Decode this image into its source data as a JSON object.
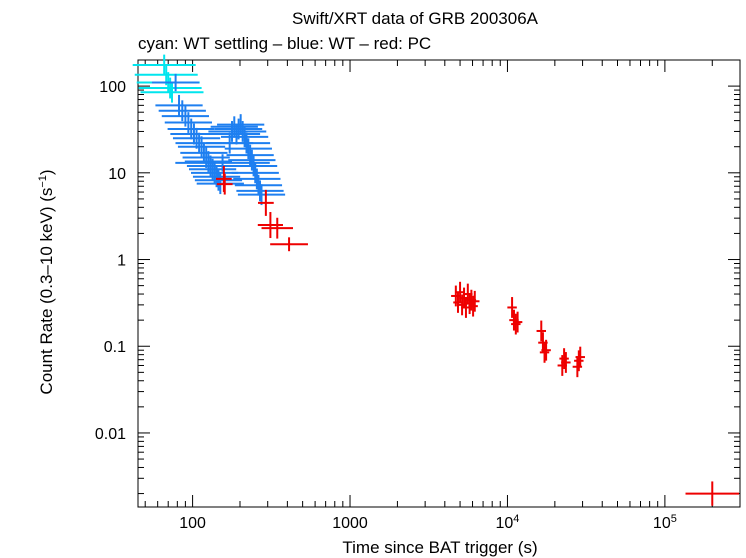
{
  "chart_data": {
    "type": "scatter",
    "title": "Swift/XRT data of GRB 200306A",
    "subtitle": "cyan: WT settling – blue: WT – red: PC",
    "xlabel": "Time since BAT trigger (s)",
    "ylabel_main": "Count Rate (0.3–10 keV) (s",
    "ylabel_sup": "−1",
    "ylabel_end": ")",
    "x_scale": "log",
    "y_scale": "log",
    "xlim": [
      45,
      300000
    ],
    "ylim": [
      0.0014,
      200
    ],
    "x_ticks": [
      {
        "value": 100,
        "label": "100",
        "sup": ""
      },
      {
        "value": 1000,
        "label": "1000",
        "sup": ""
      },
      {
        "value": 10000,
        "label": "10",
        "sup": "4"
      },
      {
        "value": 100000,
        "label": "10",
        "sup": "5"
      }
    ],
    "y_ticks": [
      {
        "value": 100,
        "label": "100"
      },
      {
        "value": 10,
        "label": "10"
      },
      {
        "value": 1,
        "label": "1"
      },
      {
        "value": 0.1,
        "label": "0.1"
      },
      {
        "value": 0.01,
        "label": "0.01"
      }
    ],
    "grid": false,
    "series": [
      {
        "name": "WT settling",
        "color": "#00e5ee",
        "points": [
          [
            66,
            175,
            0.2,
            0.12
          ],
          [
            68,
            135,
            0.2,
            0.12
          ],
          [
            70,
            110,
            0.2,
            0.12
          ],
          [
            72,
            95,
            0.2,
            0.12
          ],
          [
            74,
            85,
            0.2,
            0.12
          ]
        ]
      },
      {
        "name": "WT",
        "color": "#1e7ff0",
        "points": [
          [
            78,
            110,
            0.15,
            0.1
          ],
          [
            82,
            60,
            0.15,
            0.12
          ],
          [
            86,
            52,
            0.15,
            0.12
          ],
          [
            90,
            45,
            0.15,
            0.12
          ],
          [
            94,
            38,
            0.15,
            0.12
          ],
          [
            98,
            32,
            0.15,
            0.12
          ],
          [
            102,
            28,
            0.15,
            0.12
          ],
          [
            106,
            25,
            0.15,
            0.12
          ],
          [
            110,
            22,
            0.15,
            0.12
          ],
          [
            114,
            20,
            0.15,
            0.12
          ],
          [
            118,
            17,
            0.15,
            0.12
          ],
          [
            122,
            15,
            0.15,
            0.12
          ],
          [
            126,
            13.5,
            0.15,
            0.12
          ],
          [
            130,
            12,
            0.15,
            0.12
          ],
          [
            134,
            11,
            0.15,
            0.12
          ],
          [
            138,
            10,
            0.15,
            0.12
          ],
          [
            142,
            9,
            0.15,
            0.12
          ],
          [
            146,
            8.2,
            0.15,
            0.12
          ],
          [
            150,
            7.5,
            0.15,
            0.12
          ],
          [
            155,
            13,
            0.3,
            0.1
          ],
          [
            172,
            22,
            0.15,
            0.12
          ],
          [
            178,
            30,
            0.15,
            0.12
          ],
          [
            184,
            34,
            0.15,
            0.12
          ],
          [
            190,
            28,
            0.15,
            0.12
          ],
          [
            196,
            32,
            0.15,
            0.12
          ],
          [
            202,
            36,
            0.15,
            0.12
          ],
          [
            208,
            30,
            0.15,
            0.12
          ],
          [
            214,
            26,
            0.15,
            0.12
          ],
          [
            220,
            22,
            0.15,
            0.12
          ],
          [
            226,
            19,
            0.15,
            0.12
          ],
          [
            232,
            16,
            0.15,
            0.12
          ],
          [
            238,
            14,
            0.15,
            0.12
          ],
          [
            244,
            12,
            0.15,
            0.12
          ],
          [
            250,
            10,
            0.15,
            0.12
          ],
          [
            256,
            8.5,
            0.15,
            0.12
          ],
          [
            262,
            7.2,
            0.15,
            0.12
          ],
          [
            268,
            6.2,
            0.15,
            0.12
          ],
          [
            274,
            5.6,
            0.15,
            0.12
          ]
        ]
      },
      {
        "name": "PC",
        "color": "#ee0000",
        "points": [
          [
            158,
            8.5,
            0.05,
            0.15
          ],
          [
            160,
            7.4,
            0.05,
            0.12
          ],
          [
            292,
            4.5,
            0.05,
            0.15
          ],
          [
            312,
            2.5,
            0.08,
            0.15
          ],
          [
            345,
            2.3,
            0.1,
            0.12
          ],
          [
            410,
            1.5,
            0.12,
            0.08
          ],
          [
            4700,
            0.38,
            0.03,
            0.12
          ],
          [
            4850,
            0.32,
            0.03,
            0.12
          ],
          [
            5000,
            0.42,
            0.03,
            0.12
          ],
          [
            5150,
            0.3,
            0.03,
            0.12
          ],
          [
            5300,
            0.36,
            0.03,
            0.12
          ],
          [
            5450,
            0.28,
            0.03,
            0.12
          ],
          [
            5600,
            0.4,
            0.03,
            0.12
          ],
          [
            5750,
            0.31,
            0.03,
            0.12
          ],
          [
            5900,
            0.34,
            0.03,
            0.12
          ],
          [
            6050,
            0.29,
            0.03,
            0.12
          ],
          [
            6200,
            0.33,
            0.03,
            0.12
          ],
          [
            10700,
            0.28,
            0.03,
            0.12
          ],
          [
            11000,
            0.2,
            0.03,
            0.12
          ],
          [
            11300,
            0.18,
            0.03,
            0.12
          ],
          [
            11600,
            0.19,
            0.03,
            0.12
          ],
          [
            16400,
            0.15,
            0.03,
            0.12
          ],
          [
            16800,
            0.11,
            0.03,
            0.12
          ],
          [
            17200,
            0.085,
            0.03,
            0.12
          ],
          [
            17600,
            0.09,
            0.03,
            0.12
          ],
          [
            22300,
            0.06,
            0.03,
            0.12
          ],
          [
            22900,
            0.072,
            0.03,
            0.12
          ],
          [
            23500,
            0.065,
            0.03,
            0.12
          ],
          [
            27800,
            0.058,
            0.03,
            0.12
          ],
          [
            28400,
            0.068,
            0.03,
            0.12
          ],
          [
            29000,
            0.075,
            0.03,
            0.12
          ],
          [
            200000,
            0.002,
            0.17,
            0.14
          ]
        ]
      }
    ]
  }
}
